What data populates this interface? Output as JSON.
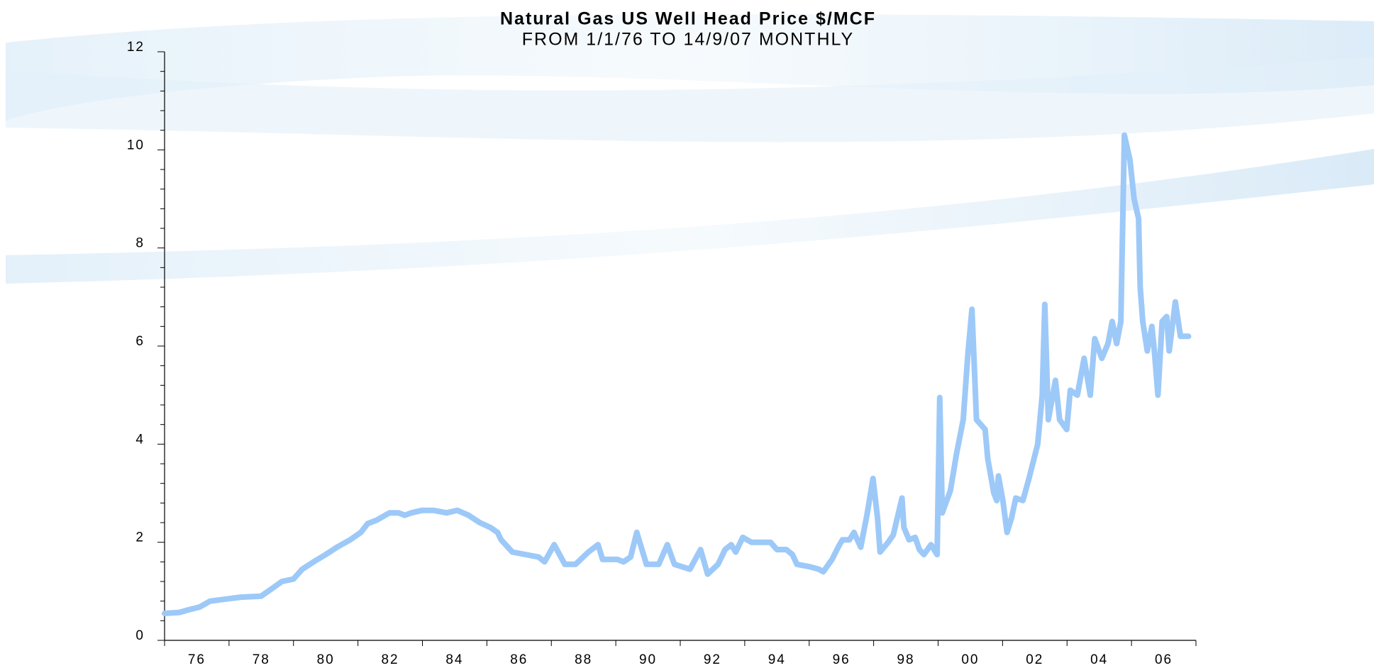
{
  "chart_data": {
    "type": "line",
    "title": "Natural Gas US Well Head Price $/MCF",
    "subtitle": "FROM 1/1/76 TO 14/9/07 MONTHLY",
    "color": "#9dc9f8",
    "x": [
      1975.0,
      1975.46,
      1975.73,
      1976.09,
      1976.41,
      1977.01,
      1977.36,
      1977.99,
      1978.32,
      1978.64,
      1979.0,
      1979.27,
      1979.67,
      1980.0,
      1980.35,
      1980.76,
      1981.09,
      1981.3,
      1981.58,
      1981.98,
      1982.26,
      1982.45,
      1982.66,
      1982.99,
      1983.34,
      1983.75,
      1984.08,
      1984.43,
      1984.78,
      1985.11,
      1985.33,
      1985.44,
      1985.79,
      1986.2,
      1986.6,
      1986.79,
      1987.09,
      1987.42,
      1987.75,
      1988.15,
      1988.45,
      1988.59,
      1989.05,
      1989.24,
      1989.46,
      1989.65,
      1989.95,
      1990.33,
      1990.6,
      1990.82,
      1991.3,
      1991.63,
      1991.85,
      1992.17,
      1992.39,
      1992.58,
      1992.72,
      1992.94,
      1993.21,
      1993.53,
      1993.8,
      1994.0,
      1994.29,
      1994.48,
      1994.62,
      1995.03,
      1995.3,
      1995.44,
      1995.71,
      1995.9,
      1996.03,
      1996.25,
      1996.39,
      1996.6,
      1996.79,
      1996.98,
      1997.12,
      1997.2,
      1997.45,
      1997.61,
      1997.88,
      1997.94,
      1998.1,
      1998.29,
      1998.42,
      1998.56,
      1998.78,
      1998.97,
      1999.05,
      1999.13,
      1999.24,
      1999.38,
      1999.57,
      1999.78,
      1999.92,
      2000.05,
      2000.19,
      2000.46,
      2000.54,
      2000.73,
      2000.82,
      2000.87,
      2001.01,
      2001.14,
      2001.28,
      2001.41,
      2001.63,
      2001.82,
      2002.09,
      2002.23,
      2002.31,
      2002.42,
      2002.64,
      2002.77,
      2002.99,
      2003.1,
      2003.32,
      2003.53,
      2003.72,
      2003.86,
      2004.08,
      2004.27,
      2004.4,
      2004.54,
      2004.67,
      2004.78,
      2004.95,
      2005.08,
      2005.22,
      2005.27,
      2005.35,
      2005.49,
      2005.63,
      2005.71,
      2005.82,
      2005.95,
      2006.09,
      2006.17,
      2006.36,
      2006.52,
      2006.77
    ],
    "values": [
      0.55,
      0.57,
      0.62,
      0.68,
      0.8,
      0.85,
      0.88,
      0.9,
      1.05,
      1.2,
      1.25,
      1.45,
      1.62,
      1.75,
      1.9,
      2.05,
      2.2,
      2.38,
      2.45,
      2.6,
      2.6,
      2.55,
      2.6,
      2.65,
      2.65,
      2.6,
      2.65,
      2.55,
      2.4,
      2.3,
      2.2,
      2.05,
      1.8,
      1.75,
      1.7,
      1.6,
      1.95,
      1.55,
      1.55,
      1.8,
      1.95,
      1.65,
      1.65,
      1.6,
      1.7,
      2.2,
      1.55,
      1.55,
      1.95,
      1.55,
      1.45,
      1.85,
      1.35,
      1.55,
      1.85,
      1.95,
      1.8,
      2.1,
      2.0,
      2.0,
      2.0,
      1.85,
      1.85,
      1.75,
      1.55,
      1.5,
      1.45,
      1.4,
      1.65,
      1.9,
      2.05,
      2.05,
      2.2,
      1.9,
      2.55,
      3.3,
      2.5,
      1.8,
      2.0,
      2.15,
      2.9,
      2.3,
      2.05,
      2.1,
      1.85,
      1.75,
      1.95,
      1.75,
      4.95,
      2.6,
      2.8,
      3.05,
      3.8,
      4.5,
      5.8,
      6.75,
      4.5,
      4.3,
      3.7,
      3.0,
      2.85,
      3.35,
      2.85,
      2.2,
      2.5,
      2.9,
      2.85,
      3.3,
      4.0,
      5.0,
      6.85,
      4.5,
      5.3,
      4.5,
      4.3,
      5.1,
      5.0,
      5.75,
      5.0,
      6.15,
      5.75,
      6.05,
      6.5,
      6.05,
      6.5,
      10.3,
      9.8,
      9.0,
      8.6,
      7.2,
      6.5,
      5.9,
      6.4,
      5.9,
      5.0,
      6.5,
      6.6,
      5.9,
      6.9,
      6.2,
      6.2
    ],
    "xlim": [
      1975,
      2007
    ],
    "xticks": [
      {
        "value": 1976,
        "label": "76"
      },
      {
        "value": 1978,
        "label": "78"
      },
      {
        "value": 1980,
        "label": "80"
      },
      {
        "value": 1982,
        "label": "82"
      },
      {
        "value": 1984,
        "label": "84"
      },
      {
        "value": 1986,
        "label": "86"
      },
      {
        "value": 1988,
        "label": "88"
      },
      {
        "value": 1990,
        "label": "90"
      },
      {
        "value": 1992,
        "label": "92"
      },
      {
        "value": 1994,
        "label": "94"
      },
      {
        "value": 1996,
        "label": "96"
      },
      {
        "value": 1998,
        "label": "98"
      },
      {
        "value": 2000,
        "label": "00"
      },
      {
        "value": 2002,
        "label": "02"
      },
      {
        "value": 2004,
        "label": "04"
      },
      {
        "value": 2006,
        "label": "06"
      }
    ],
    "xminor_ticks": [
      1975,
      1977,
      1979,
      1981,
      1983,
      1985,
      1987,
      1989,
      1991,
      1993,
      1995,
      1997,
      1999,
      2001,
      2003,
      2005,
      2007
    ],
    "ylim": [
      0,
      12
    ],
    "yticks": [
      0,
      2,
      4,
      6,
      8,
      10,
      12
    ],
    "yminor_ticks": [
      0.4,
      0.8,
      1.2,
      1.6,
      2.4,
      2.8,
      3.2,
      3.6,
      4.4,
      4.8,
      5.2,
      5.6,
      6.4,
      6.8,
      7.2,
      7.6,
      8.4,
      8.8,
      9.2,
      9.6,
      10.4,
      10.8,
      11.2,
      11.6
    ],
    "grid": false
  }
}
